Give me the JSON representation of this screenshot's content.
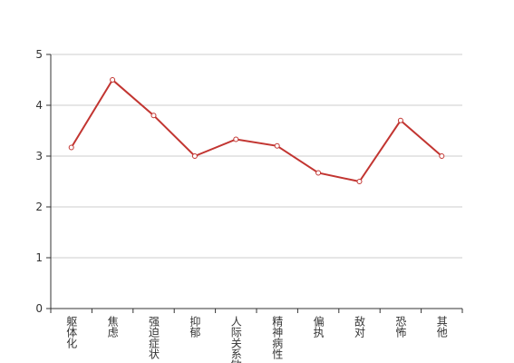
{
  "chart_data": {
    "type": "line",
    "categories": [
      "躯体化",
      "焦虑",
      "强迫症状",
      "抑郁",
      "人际关系敏感",
      "精神病性",
      "偏执",
      "敌对",
      "恐怖",
      "其他"
    ],
    "values": [
      3.17,
      4.5,
      3.8,
      3.0,
      3.33,
      3.2,
      2.67,
      2.5,
      3.7,
      3.0
    ],
    "color": "#c23531",
    "ylim": [
      0,
      5
    ],
    "yticks": [
      0,
      1,
      2,
      3,
      4,
      5
    ],
    "grid": true
  }
}
